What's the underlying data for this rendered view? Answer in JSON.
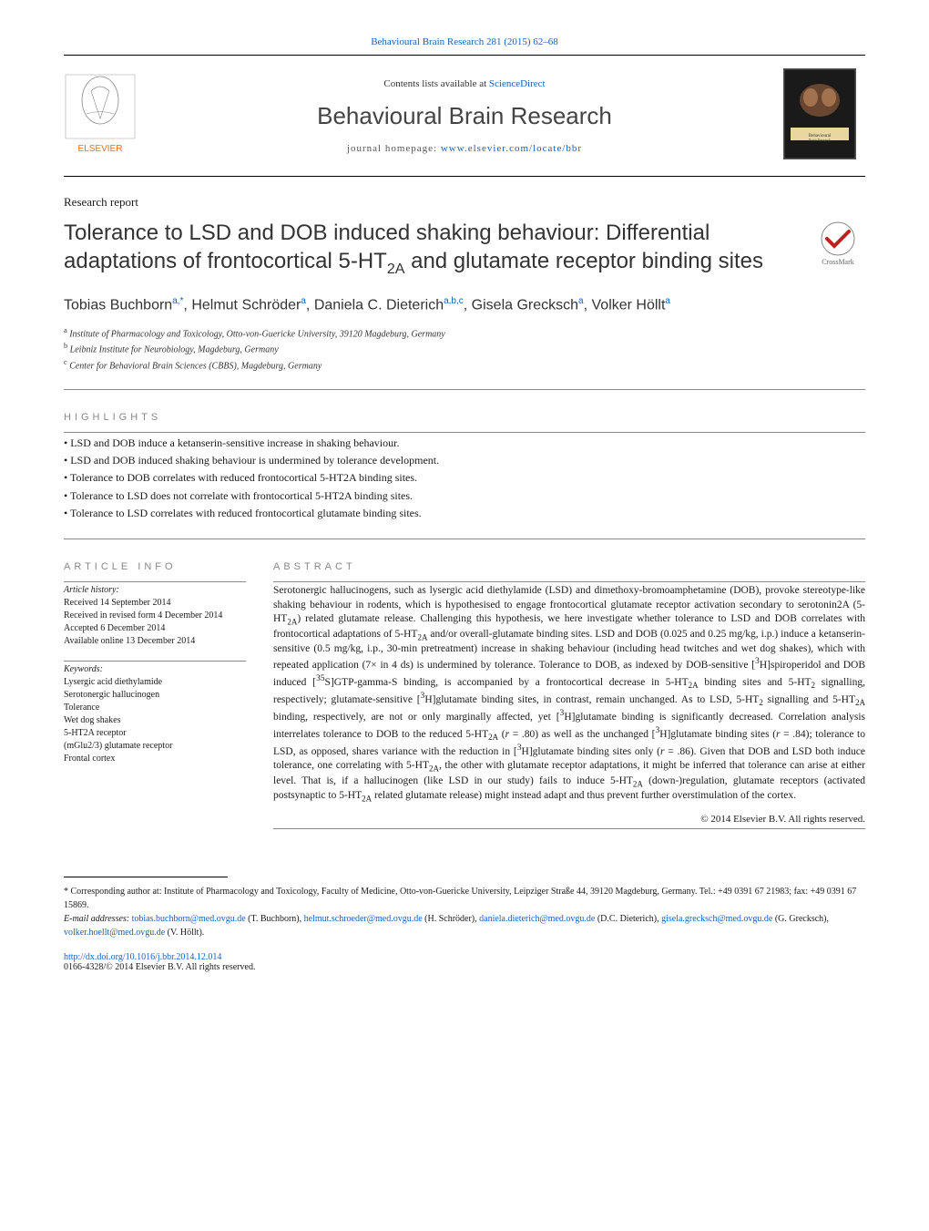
{
  "header": {
    "citation_prefix": "Behavioural Brain Research 281 (2015) 62–68",
    "contents_line_prefix": "Contents lists available at ",
    "contents_link": "ScienceDirect",
    "journal_name": "Behavioural Brain Research",
    "homepage_prefix": "journal homepage: ",
    "homepage_url": "www.elsevier.com/locate/bbr"
  },
  "article": {
    "type": "Research report",
    "title_html": "Tolerance to LSD and DOB induced shaking behaviour: Differential adaptations of frontocortical 5-HT<sub>2A</sub> and glutamate receptor binding sites",
    "crossmark_label": "CrossMark"
  },
  "authors_html": "Tobias Buchborn<sup>a,*</sup>, Helmut Schröder<sup>a</sup>, Daniela C. Dieterich<sup>a,b,c</sup>, Gisela Grecksch<sup>a</sup>, Volker Höllt<sup>a</sup>",
  "affiliations": [
    {
      "sup": "a",
      "text": "Institute of Pharmacology and Toxicology, Otto-von-Guericke University, 39120 Magdeburg, Germany"
    },
    {
      "sup": "b",
      "text": "Leibniz Institute for Neurobiology, Magdeburg, Germany"
    },
    {
      "sup": "c",
      "text": "Center for Behavioral Brain Sciences (CBBS), Magdeburg, Germany"
    }
  ],
  "highlights": {
    "heading": "HIGHLIGHTS",
    "items": [
      "LSD and DOB induce a ketanserin-sensitive increase in shaking behaviour.",
      "LSD and DOB induced shaking behaviour is undermined by tolerance development.",
      "Tolerance to DOB correlates with reduced frontocortical 5-HT2A binding sites.",
      "Tolerance to LSD does not correlate with frontocortical 5-HT2A binding sites.",
      "Tolerance to LSD correlates with reduced frontocortical glutamate binding sites."
    ]
  },
  "article_info": {
    "heading": "ARTICLE INFO",
    "history_title": "Article history:",
    "history": [
      "Received 14 September 2014",
      "Received in revised form 4 December 2014",
      "Accepted 6 December 2014",
      "Available online 13 December 2014"
    ],
    "keywords_title": "Keywords:",
    "keywords": [
      "Lysergic acid diethylamide",
      "Serotonergic hallucinogen",
      "Tolerance",
      "Wet dog shakes",
      "5-HT2A receptor",
      "(mGlu2/3) glutamate receptor",
      "Frontal cortex"
    ]
  },
  "abstract": {
    "heading": "ABSTRACT",
    "text_html": "Serotonergic hallucinogens, such as lysergic acid diethylamide (LSD) and dimethoxy-bromoamphetamine (DOB), provoke stereotype-like shaking behaviour in rodents, which is hypothesised to engage frontocortical glutamate receptor activation secondary to serotonin2A (5-HT<sub>2A</sub>) related glutamate release. Challenging this hypothesis, we here investigate whether tolerance to LSD and DOB correlates with frontocortical adaptations of 5-HT<sub>2A</sub> and/or overall-glutamate binding sites. LSD and DOB (0.025 and 0.25 mg/kg, i.p.) induce a ketanserin-sensitive (0.5 mg/kg, i.p., 30-min pretreatment) increase in shaking behaviour (including head twitches and wet dog shakes), which with repeated application (7× in 4 ds) is undermined by tolerance. Tolerance to DOB, as indexed by DOB-sensitive [<sup>3</sup>H]spiroperidol and DOB induced [<sup>35</sup>S]GTP-gamma-S binding, is accompanied by a frontocortical decrease in 5-HT<sub>2A</sub> binding sites and 5-HT<sub>2</sub> signalling, respectively; glutamate-sensitive [<sup>3</sup>H]glutamate binding sites, in contrast, remain unchanged. As to LSD, 5-HT<sub>2</sub> signalling and 5-HT<sub>2A</sub> binding, respectively, are not or only marginally affected, yet [<sup>3</sup>H]glutamate binding is significantly decreased. Correlation analysis interrelates tolerance to DOB to the reduced 5-HT<sub>2A</sub> (<i>r</i> = .80) as well as the unchanged [<sup>3</sup>H]glutamate binding sites (<i>r</i> = .84); tolerance to LSD, as opposed, shares variance with the reduction in [<sup>3</sup>H]glutamate binding sites only (<i>r</i> = .86). Given that DOB and LSD both induce tolerance, one correlating with 5-HT<sub>2A</sub>, the other with glutamate receptor adaptations, it might be inferred that tolerance can arise at either level. That is, if a hallucinogen (like LSD in our study) fails to induce 5-HT<sub>2A</sub> (down-)regulation, glutamate receptors (activated postsynaptic to 5-HT<sub>2A</sub> related glutamate release) might instead adapt and thus prevent further overstimulation of the cortex.",
    "copyright": "© 2014 Elsevier B.V. All rights reserved."
  },
  "footer": {
    "corresponding_label": "* Corresponding author at: Institute of Pharmacology and Toxicology, Faculty of Medicine, Otto-von-Guericke University, Leipziger Straße 44, 39120 Magdeburg, Germany. Tel.: +49 0391 67 21983; fax: +49 0391 67 15869.",
    "email_label": "E-mail addresses: ",
    "emails": [
      {
        "addr": "tobias.buchborn@med.ovgu.de",
        "name": "(T. Buchborn)"
      },
      {
        "addr": "helmut.schroeder@med.ovgu.de",
        "name": "(H. Schröder)"
      },
      {
        "addr": "daniela.dieterich@med.ovgu.de",
        "name": "(D.C. Dieterich)"
      },
      {
        "addr": "gisela.grecksch@med.ovgu.de",
        "name": "(G. Grecksch)"
      },
      {
        "addr": "volker.hoellt@med.ovgu.de",
        "name": "(V. Höllt)"
      }
    ],
    "doi": "http://dx.doi.org/10.1016/j.bbr.2014.12.014",
    "issn_line": "0166-4328/© 2014 Elsevier B.V. All rights reserved."
  },
  "colors": {
    "link": "#1a5fb4",
    "elsevier_orange": "#e9711c",
    "text_gray": "#888888"
  }
}
